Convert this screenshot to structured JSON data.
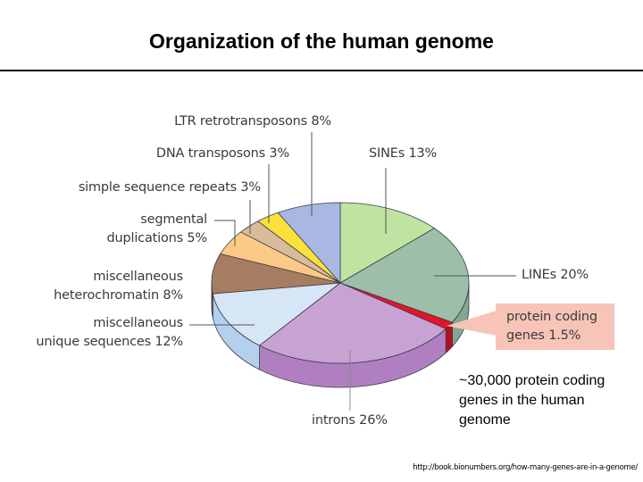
{
  "page": {
    "title": "Organization of the human genome",
    "note": "~30,000 protein coding genes in the human genome",
    "source_url": "http://book.bionumbers.org/how-many-genes-are-in-a-genome/"
  },
  "labels": {
    "ltr": "LTR retrotransposons 8%",
    "dna": "DNA transposons 3%",
    "ssr": "simple sequence repeats 3%",
    "seg_line1": "segmental",
    "seg_line2": "duplications 5%",
    "het_line1": "miscellaneous",
    "het_line2": "heterochromatin 8%",
    "uniq_line1": "miscellaneous",
    "uniq_line2": "unique sequences 12%",
    "sines": "SINEs 13%",
    "lines": "LINEs 20%",
    "protein_line1": "protein coding",
    "protein_line2": "genes 1.5%",
    "introns": "introns 26%"
  },
  "chart_data": {
    "type": "pie",
    "style": "3d",
    "title": "Organization of the human genome",
    "start_angle_deg": -90,
    "direction": "clockwise",
    "unit": "%",
    "categories": [
      "SINEs",
      "LINEs",
      "protein coding genes",
      "introns",
      "miscellaneous unique sequences",
      "miscellaneous heterochromatin",
      "segmental duplications",
      "simple sequence repeats",
      "DNA transposons",
      "LTR retrotransposons"
    ],
    "values": [
      13,
      20,
      1.5,
      26,
      12,
      8,
      5,
      3,
      3,
      8
    ],
    "colors": [
      "#bfe3a0",
      "#9dbfaa",
      "#e4142b",
      "#c9a2d4",
      "#d6e6f6",
      "#a67d60",
      "#fdca86",
      "#d7bb9b",
      "#fbe03c",
      "#a8b8e2"
    ],
    "side_colors": [
      "#a8cc88",
      "#86a592",
      "#b80d1e",
      "#b07fc2",
      "#b3d0ee",
      "#6e4b34",
      "#e8b06a",
      "#bfa281",
      "#e0c52a",
      "#8c9ccb"
    ],
    "highlight": "protein coding genes",
    "legend": "none (direct labels)"
  }
}
